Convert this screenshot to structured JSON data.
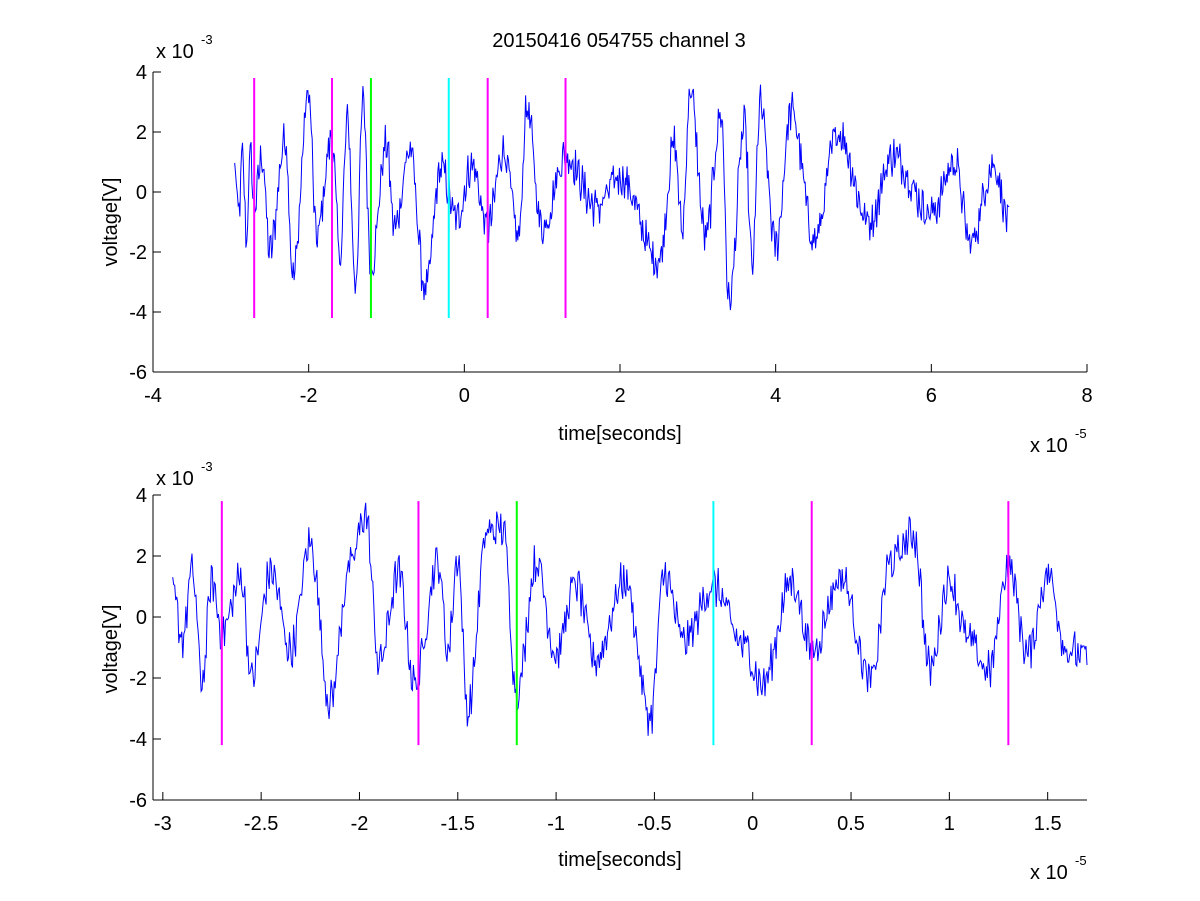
{
  "chart_data": [
    {
      "type": "line",
      "title": "20150416 054755 channel 3",
      "xlabel": "time[seconds]",
      "ylabel": "voltage[V]",
      "xlim": [
        -4e-05,
        8e-05
      ],
      "ylim": [
        -0.006,
        0.004
      ],
      "x_ticks": [
        -4e-05,
        -2e-05,
        0,
        2e-05,
        4e-05,
        6e-05,
        8e-05
      ],
      "x_tick_labels": [
        "-4",
        "-2",
        "0",
        "2",
        "4",
        "6",
        "8"
      ],
      "y_ticks": [
        -0.006,
        -0.004,
        -0.002,
        0,
        0.002,
        0.004
      ],
      "y_tick_labels": [
        "-6",
        "-4",
        "-2",
        "0",
        "2",
        "4"
      ],
      "x_multiplier": {
        "base": "x 10",
        "exponent": "-5"
      },
      "y_multiplier": {
        "base": "x 10",
        "exponent": "-3"
      },
      "grid": false,
      "series": [
        {
          "color": "#0000ff",
          "x_start": -2.95e-05,
          "x_end": 7e-05,
          "points": [
            [
              -2.95e-05,
              0.0008
            ],
            [
              -2.9e-05,
              -0.0008
            ],
            [
              -2.85e-05,
              0.0012
            ],
            [
              -2.8e-05,
              -0.0016
            ],
            [
              -2.75e-05,
              0.0013
            ],
            [
              -2.7e-05,
              -0.0005
            ],
            [
              -2.6e-05,
              0.0012
            ],
            [
              -2.5e-05,
              -0.002
            ],
            [
              -2.3e-05,
              0.0018
            ],
            [
              -2.2e-05,
              -0.0028
            ],
            [
              -2e-05,
              0.0033
            ],
            [
              -1.9e-05,
              -0.0015
            ],
            [
              -1.7e-05,
              0.0018
            ],
            [
              -1.6e-05,
              -0.0022
            ],
            [
              -1.5e-05,
              0.0024
            ],
            [
              -1.4e-05,
              -0.0031
            ],
            [
              -1.3e-05,
              0.003
            ],
            [
              -1.2e-05,
              -0.0025
            ],
            [
              -1e-05,
              0.0016
            ],
            [
              -9e-06,
              -0.0012
            ],
            [
              -7e-06,
              0.0014
            ],
            [
              -5e-06,
              -0.0033
            ],
            [
              -3e-06,
              0.0008
            ],
            [
              -1e-06,
              -0.0009
            ],
            [
              1e-06,
              0.0009
            ],
            [
              3e-06,
              -0.0012
            ],
            [
              5e-06,
              0.0014
            ],
            [
              7e-06,
              -0.0015
            ],
            [
              8e-06,
              0.0028
            ],
            [
              1e-05,
              -0.0012
            ],
            [
              1.3e-05,
              0.0012
            ],
            [
              1.7e-05,
              -0.0005
            ],
            [
              2e-05,
              0.0005
            ],
            [
              2.5e-05,
              -0.0023
            ],
            [
              2.7e-05,
              0.0016
            ],
            [
              2.8e-05,
              -0.0013
            ],
            [
              2.9e-05,
              0.0034
            ],
            [
              3.1e-05,
              -0.0015
            ],
            [
              3.3e-05,
              0.0026
            ],
            [
              3.4e-05,
              -0.0037
            ],
            [
              3.6e-05,
              0.0022
            ],
            [
              3.7e-05,
              -0.0025
            ],
            [
              3.8e-05,
              0.0029
            ],
            [
              4e-05,
              -0.0018
            ],
            [
              4.2e-05,
              0.0027
            ],
            [
              4.5e-05,
              -0.0016
            ],
            [
              4.8e-05,
              0.002
            ],
            [
              5.2e-05,
              -0.001
            ],
            [
              5.5e-05,
              0.0012
            ],
            [
              6e-05,
              -0.0007
            ],
            [
              6.3e-05,
              0.001
            ],
            [
              6.5e-05,
              -0.0017
            ],
            [
              6.8e-05,
              0.0009
            ],
            [
              7e-05,
              -0.001
            ]
          ]
        }
      ],
      "markers": [
        {
          "x": -2.7e-05,
          "color": "#ff00ff"
        },
        {
          "x": -1.7e-05,
          "color": "#ff00ff"
        },
        {
          "x": -1.2e-05,
          "color": "#00ff00"
        },
        {
          "x": -2e-06,
          "color": "#00ffff"
        },
        {
          "x": 3e-06,
          "color": "#ff00ff"
        },
        {
          "x": 1.3e-05,
          "color": "#ff00ff"
        }
      ],
      "marker_ylim": [
        -0.0042,
        0.0038
      ]
    },
    {
      "type": "line",
      "title": "",
      "xlabel": "time[seconds]",
      "ylabel": "voltage[V]",
      "xlim": [
        -3.05e-05,
        1.7e-05
      ],
      "ylim": [
        -0.006,
        0.004
      ],
      "x_ticks": [
        -3e-05,
        -2.5e-05,
        -2e-05,
        -1.5e-05,
        -1e-05,
        -5e-06,
        0,
        5e-06,
        1e-05,
        1.5e-05
      ],
      "x_tick_labels": [
        "-3",
        "-2.5",
        "-2",
        "-1.5",
        "-1",
        "-0.5",
        "0",
        "0.5",
        "1",
        "1.5"
      ],
      "y_ticks": [
        -0.006,
        -0.004,
        -0.002,
        0,
        0.002,
        0.004
      ],
      "y_tick_labels": [
        "-6",
        "-4",
        "-2",
        "0",
        "2",
        "4"
      ],
      "x_multiplier": {
        "base": "x 10",
        "exponent": "-5"
      },
      "y_multiplier": {
        "base": "x 10",
        "exponent": "-3"
      },
      "grid": false,
      "series": [
        {
          "color": "#0000ff",
          "x_start": -2.95e-05,
          "x_end": 1.7e-05,
          "points": [
            [
              -2.95e-05,
              0.0008
            ],
            [
              -2.9e-05,
              -0.0007
            ],
            [
              -2.85e-05,
              0.0015
            ],
            [
              -2.8e-05,
              -0.0021
            ],
            [
              -2.75e-05,
              0.0012
            ],
            [
              -2.7e-05,
              -0.0005
            ],
            [
              -2.6e-05,
              0.0013
            ],
            [
              -2.55e-05,
              -0.002
            ],
            [
              -2.45e-05,
              0.0015
            ],
            [
              -2.35e-05,
              -0.0011
            ],
            [
              -2.25e-05,
              0.0024
            ],
            [
              -2.15e-05,
              -0.0028
            ],
            [
              -2.05e-05,
              0.0016
            ],
            [
              -1.97e-05,
              0.0034
            ],
            [
              -1.9e-05,
              -0.0015
            ],
            [
              -1.8e-05,
              0.0014
            ],
            [
              -1.72e-05,
              -0.0022
            ],
            [
              -1.6e-05,
              0.0018
            ],
            [
              -1.55e-05,
              -0.0011
            ],
            [
              -1.5e-05,
              0.002
            ],
            [
              -1.45e-05,
              -0.0031
            ],
            [
              -1.35e-05,
              0.0028
            ],
            [
              -1.27e-05,
              0.0029
            ],
            [
              -1.2e-05,
              -0.0025
            ],
            [
              -1.1e-05,
              0.0018
            ],
            [
              -1e-05,
              -0.0012
            ],
            [
              -9e-06,
              0.0011
            ],
            [
              -8e-06,
              -0.0014
            ],
            [
              -6.5e-06,
              0.0012
            ],
            [
              -5.2e-06,
              -0.0033
            ],
            [
              -4.5e-06,
              0.0014
            ],
            [
              -3.5e-06,
              -0.0008
            ],
            [
              -2e-06,
              0.001
            ],
            [
              -5e-07,
              -0.0009
            ],
            [
              5e-07,
              -0.0022
            ],
            [
              2e-06,
              0.0012
            ],
            [
              3e-06,
              -0.0011
            ],
            [
              4.5e-06,
              0.0013
            ],
            [
              6e-06,
              -0.0021
            ],
            [
              7e-06,
              0.0018
            ],
            [
              8.2e-06,
              0.0027
            ],
            [
              9e-06,
              -0.0017
            ],
            [
              1e-05,
              0.0012
            ],
            [
              1.1e-05,
              -0.0008
            ],
            [
              1.2e-05,
              -0.0018
            ],
            [
              1.3e-05,
              0.0017
            ],
            [
              1.4e-05,
              -0.0012
            ],
            [
              1.5e-05,
              0.0014
            ],
            [
              1.6e-05,
              -0.0011
            ],
            [
              1.7e-05,
              -0.0013
            ]
          ]
        }
      ],
      "markers": [
        {
          "x": -2.7e-05,
          "color": "#ff00ff"
        },
        {
          "x": -1.7e-05,
          "color": "#ff00ff"
        },
        {
          "x": -1.2e-05,
          "color": "#00ff00"
        },
        {
          "x": -2e-06,
          "color": "#00ffff"
        },
        {
          "x": 3e-06,
          "color": "#ff00ff"
        },
        {
          "x": 1.3e-05,
          "color": "#ff00ff"
        }
      ],
      "marker_ylim": [
        -0.0042,
        0.0038
      ]
    }
  ]
}
